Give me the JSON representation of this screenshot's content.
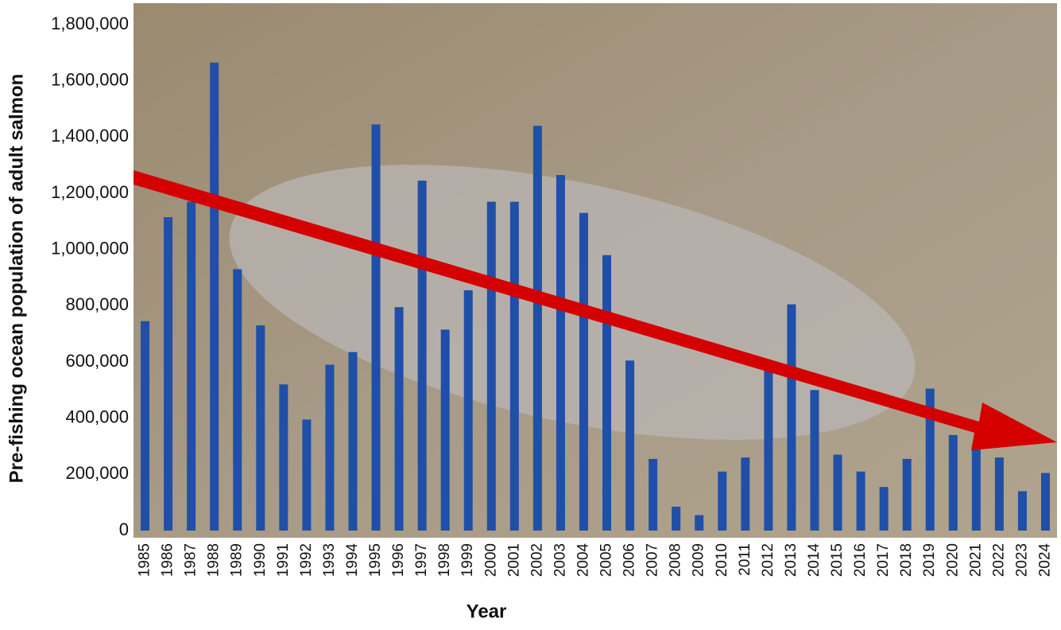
{
  "chart_data": {
    "type": "bar",
    "x_label": "Year",
    "y_label": "Pre-fishing ocean population of adult salmon",
    "categories": [
      "1985",
      "1986",
      "1987",
      "1988",
      "1989",
      "1990",
      "1991",
      "1992",
      "1993",
      "1994",
      "1995",
      "1996",
      "1997",
      "1998",
      "1999",
      "2000",
      "2001",
      "2002",
      "2003",
      "2004",
      "2005",
      "2006",
      "2007",
      "2008",
      "2009",
      "2010",
      "2011",
      "2012",
      "2013",
      "2014",
      "2015",
      "2016",
      "2017",
      "2018",
      "2019",
      "2020",
      "2021",
      "2022",
      "2023",
      "2024"
    ],
    "values": [
      745000,
      1115000,
      1170000,
      1665000,
      930000,
      730000,
      520000,
      395000,
      590000,
      635000,
      1445000,
      795000,
      1245000,
      715000,
      855000,
      1170000,
      1170000,
      1440000,
      1265000,
      1130000,
      980000,
      605000,
      255000,
      85000,
      55000,
      210000,
      260000,
      585000,
      805000,
      500000,
      270000,
      210000,
      155000,
      255000,
      505000,
      340000,
      300000,
      260000,
      140000,
      205000
    ],
    "color": "#1f4fa8",
    "ylim": [
      0,
      1800000
    ],
    "yticks": [
      0,
      {
        "value": 200000,
        "label": "200,000"
      },
      {
        "value": 400000,
        "label": "400,000"
      },
      {
        "value": 600000,
        "label": "600,000"
      },
      {
        "value": 800000,
        "label": "800,000"
      },
      {
        "value": 1000000,
        "label": "1,000,000"
      },
      {
        "value": 1200000,
        "label": "1,200,000"
      },
      {
        "value": 1400000,
        "label": "1,400,000"
      },
      {
        "value": 1600000,
        "label": "1,600,000"
      },
      {
        "value": 1800000,
        "label": "1,800,000"
      }
    ],
    "grid": false
  }
}
